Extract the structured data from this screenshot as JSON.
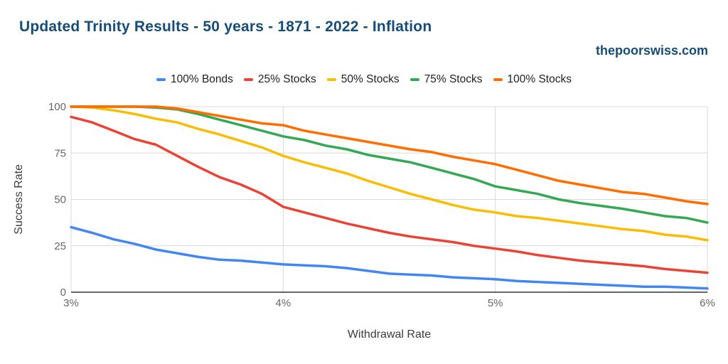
{
  "header": {
    "title": "Updated Trinity Results - 50 years - 1871 - 2022 - Inflation",
    "watermark": "thepoorswiss.com"
  },
  "legend": {
    "items": [
      {
        "label": "100% Bonds",
        "color": "#4285F4"
      },
      {
        "label": "25% Stocks",
        "color": "#EA4335"
      },
      {
        "label": "50% Stocks",
        "color": "#FBBC04"
      },
      {
        "label": "75% Stocks",
        "color": "#34A853"
      },
      {
        "label": "100% Stocks",
        "color": "#FF6D01"
      }
    ]
  },
  "colors": {
    "title": "#154d78",
    "grid": "#d9d9d9",
    "baseline": "#333333",
    "tick_text": "#666666",
    "axis_title": "#3b3b3b",
    "background": "#ffffff"
  },
  "chart_data": {
    "type": "line",
    "title": "Updated Trinity Results - 50 years - 1871 - 2022 - Inflation",
    "xlabel": "Withdrawal Rate",
    "ylabel": "Success Rate",
    "xlim": [
      3,
      6
    ],
    "ylim": [
      0,
      100
    ],
    "grid": true,
    "legend_position": "top",
    "x_ticks": [
      3,
      4,
      5,
      6
    ],
    "x_tick_labels": [
      "3%",
      "4%",
      "5%",
      "6%"
    ],
    "y_ticks": [
      0,
      25,
      50,
      75,
      100
    ],
    "x": [
      3.0,
      3.1,
      3.2,
      3.3,
      3.4,
      3.5,
      3.6,
      3.7,
      3.8,
      3.9,
      4.0,
      4.1,
      4.2,
      4.3,
      4.4,
      4.5,
      4.6,
      4.7,
      4.8,
      4.9,
      5.0,
      5.1,
      5.2,
      5.3,
      5.4,
      5.5,
      5.6,
      5.7,
      5.8,
      5.9,
      6.0
    ],
    "series": [
      {
        "name": "100% Bonds",
        "color": "#4285F4",
        "values": [
          35,
          32,
          28.5,
          26,
          23,
          21,
          19,
          17.5,
          17,
          16,
          15,
          14.5,
          14,
          13,
          11.5,
          10,
          9.5,
          9,
          8,
          7.5,
          7,
          6,
          5.5,
          5,
          4.5,
          4,
          3.5,
          3,
          3,
          2.5,
          2
        ]
      },
      {
        "name": "25% Stocks",
        "color": "#EA4335",
        "values": [
          94.5,
          91.5,
          87,
          82.5,
          79.5,
          73.5,
          67.5,
          62,
          58,
          53,
          46,
          43,
          40,
          37,
          34.5,
          32,
          30,
          28.5,
          27,
          25,
          23.5,
          22,
          20,
          18.5,
          17,
          16,
          15,
          14,
          12.5,
          11.5,
          10.5
        ]
      },
      {
        "name": "50% Stocks",
        "color": "#FBBC04",
        "values": [
          100,
          99.5,
          98,
          96,
          93.5,
          91.5,
          88,
          85,
          81.5,
          78,
          73.5,
          70,
          67,
          64,
          60,
          56.5,
          53,
          50,
          47,
          44.5,
          43,
          41,
          40,
          38.5,
          37,
          35.5,
          34,
          33,
          31,
          30,
          28
        ]
      },
      {
        "name": "75% Stocks",
        "color": "#34A853",
        "values": [
          100,
          100,
          100,
          100,
          99.5,
          98.5,
          96,
          93,
          90,
          87,
          84,
          82,
          79,
          77,
          74,
          72,
          70,
          67,
          64,
          61,
          57,
          55,
          53,
          50,
          48,
          46.5,
          45,
          43,
          41,
          40,
          37.5
        ]
      },
      {
        "name": "100% Stocks",
        "color": "#FF6D01",
        "values": [
          100,
          100,
          100,
          100,
          100,
          99,
          97,
          95,
          93,
          91,
          90,
          87,
          85,
          83,
          81,
          79,
          77,
          75.5,
          73,
          71,
          69,
          66,
          63,
          60,
          58,
          56,
          54,
          53,
          51,
          49,
          47.5
        ]
      }
    ]
  }
}
